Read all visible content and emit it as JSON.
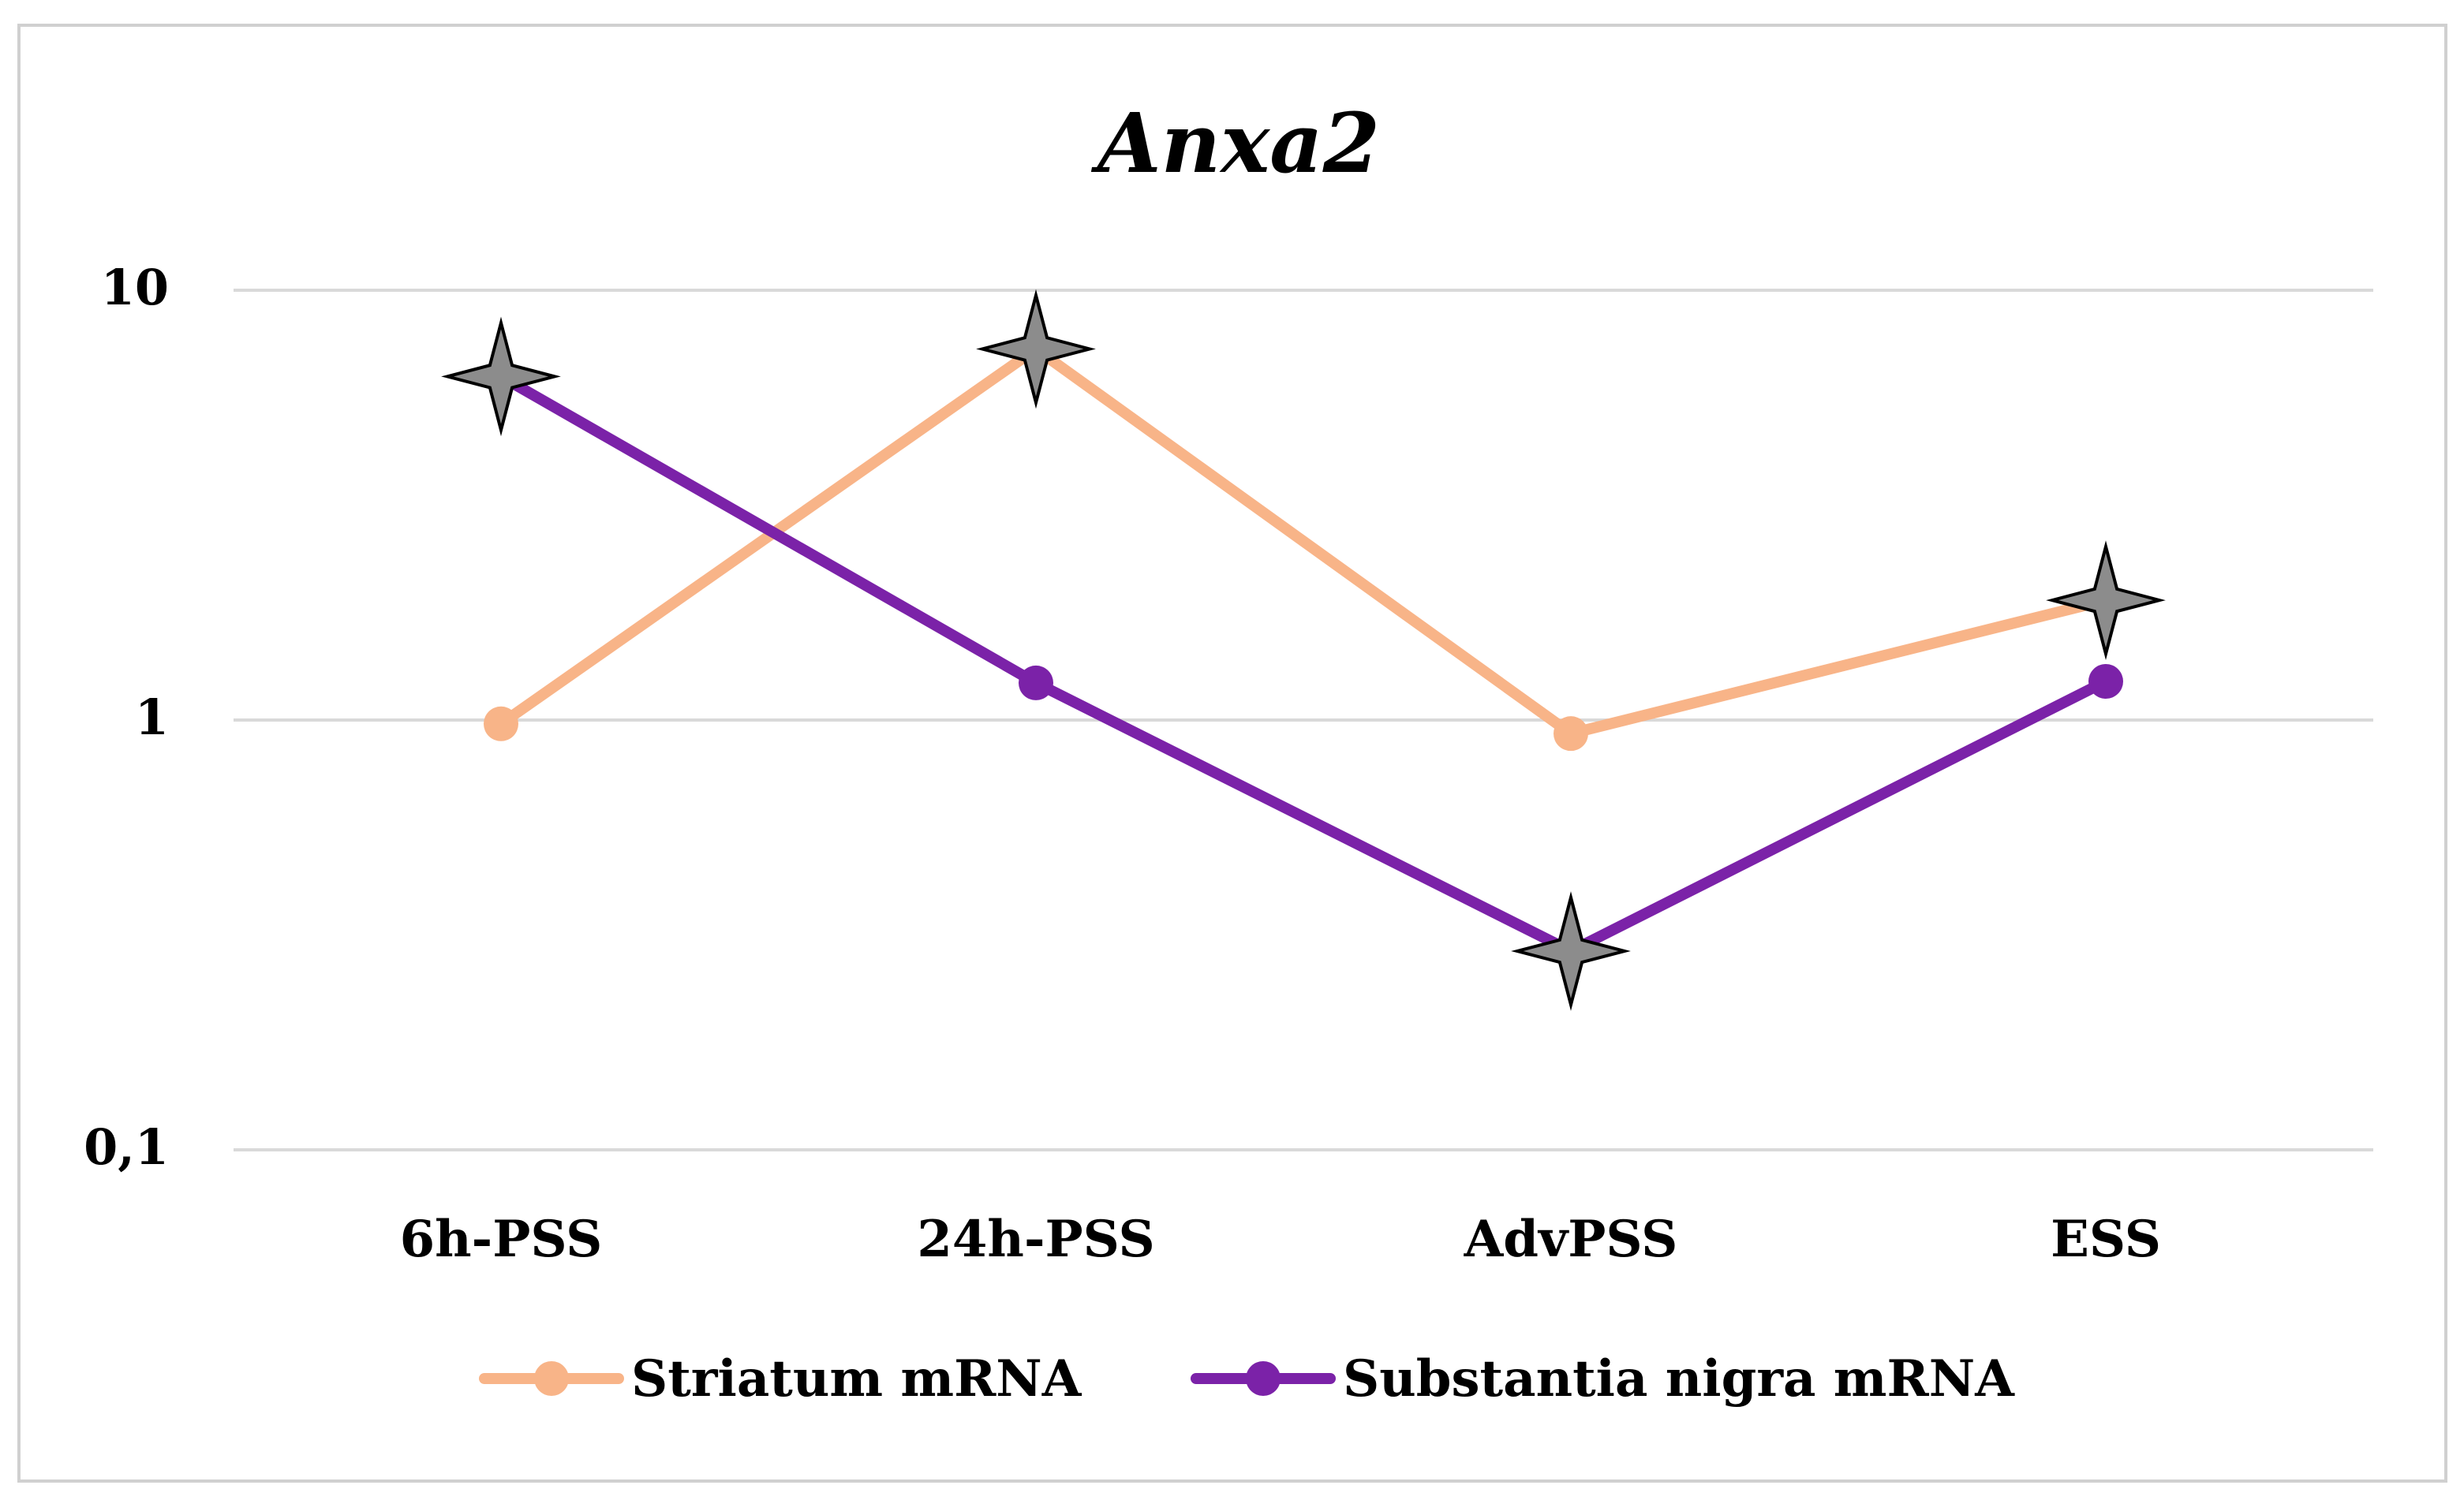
{
  "chart_data": {
    "type": "line",
    "title": "Anxa2",
    "xlabel": "",
    "ylabel": "",
    "yscale": "log",
    "ylim": [
      0.1,
      10
    ],
    "y_ticks": [
      {
        "value": 10,
        "label": "10"
      },
      {
        "value": 1,
        "label": "1"
      },
      {
        "value": 0.1,
        "label": "0,1"
      }
    ],
    "categories": [
      "6h-PSS",
      "24h-PSS",
      "AdvPSS",
      "ESS"
    ],
    "series": [
      {
        "name": "Striatum mRNA",
        "color": "#F8B488",
        "values": [
          0.98,
          7.3,
          0.93,
          1.9
        ],
        "significant": [
          false,
          true,
          false,
          true
        ]
      },
      {
        "name": "Substantia nigra mRNA",
        "color": "#7B22A8",
        "values": [
          6.3,
          1.22,
          0.29,
          1.23
        ],
        "significant": [
          true,
          false,
          true,
          false
        ]
      }
    ],
    "significance_marker": "four-point-star-icon",
    "marker_color": "#8C8C8C",
    "gridlines": true,
    "legend_position": "bottom"
  }
}
